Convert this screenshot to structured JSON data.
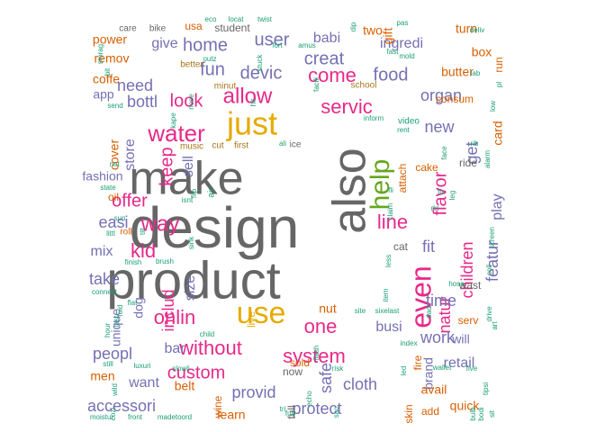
{
  "chart_data": {
    "type": "wordcloud",
    "palette": {
      "gray": "#666666",
      "magenta": "#e7298a",
      "gold": "#e6ab02",
      "purple": "#7570b3",
      "orange": "#d95f02",
      "teal": "#1b9e77",
      "green": "#66a61e",
      "brown": "#a6761d"
    },
    "words": [
      {
        "text": "design",
        "color": "gray"
      },
      {
        "text": "product",
        "color": "gray"
      },
      {
        "text": "make",
        "color": "gray"
      },
      {
        "text": "also",
        "color": "gray"
      },
      {
        "text": "just",
        "color": "gold"
      },
      {
        "text": "use",
        "color": "gold"
      },
      {
        "text": "help",
        "color": "green"
      },
      {
        "text": "even",
        "color": "magenta"
      },
      {
        "text": "water",
        "color": "magenta"
      },
      {
        "text": "way",
        "color": "magenta"
      },
      {
        "text": "allow",
        "color": "magenta"
      },
      {
        "text": "come",
        "color": "magenta"
      },
      {
        "text": "servic",
        "color": "magenta"
      },
      {
        "text": "line",
        "color": "magenta"
      },
      {
        "text": "without",
        "color": "magenta"
      },
      {
        "text": "system",
        "color": "magenta"
      },
      {
        "text": "custom",
        "color": "magenta"
      },
      {
        "text": "onlin",
        "color": "magenta"
      },
      {
        "text": "kid",
        "color": "magenta"
      },
      {
        "text": "offer",
        "color": "magenta"
      },
      {
        "text": "keep",
        "color": "magenta"
      },
      {
        "text": "look",
        "color": "magenta"
      },
      {
        "text": "flavor",
        "color": "magenta"
      },
      {
        "text": "children",
        "color": "magenta"
      },
      {
        "text": "natur",
        "color": "magenta"
      },
      {
        "text": "one",
        "color": "magenta"
      },
      {
        "text": "includ",
        "color": "magenta"
      },
      {
        "text": "safe",
        "color": "purple"
      },
      {
        "text": "fun",
        "color": "purple"
      },
      {
        "text": "devic",
        "color": "purple"
      },
      {
        "text": "creat",
        "color": "purple"
      },
      {
        "text": "food",
        "color": "purple"
      },
      {
        "text": "home",
        "color": "purple"
      },
      {
        "text": "user",
        "color": "purple"
      },
      {
        "text": "need",
        "color": "purple"
      },
      {
        "text": "easi",
        "color": "purple"
      },
      {
        "text": "store",
        "color": "purple"
      },
      {
        "text": "sell",
        "color": "purple"
      },
      {
        "text": "get",
        "color": "purple"
      },
      {
        "text": "new",
        "color": "purple"
      },
      {
        "text": "fit",
        "color": "purple"
      },
      {
        "text": "featur",
        "color": "purple"
      },
      {
        "text": "time",
        "color": "purple"
      },
      {
        "text": "work",
        "color": "purple"
      },
      {
        "text": "protect",
        "color": "purple"
      },
      {
        "text": "cloth",
        "color": "purple"
      },
      {
        "text": "provid",
        "color": "purple"
      },
      {
        "text": "accessori",
        "color": "purple"
      },
      {
        "text": "peopl",
        "color": "purple"
      },
      {
        "text": "want",
        "color": "purple"
      },
      {
        "text": "busi",
        "color": "purple"
      },
      {
        "text": "take",
        "color": "purple"
      },
      {
        "text": "mix",
        "color": "purple"
      },
      {
        "text": "bar",
        "color": "purple"
      },
      {
        "text": "size",
        "color": "purple"
      },
      {
        "text": "bottl",
        "color": "purple"
      },
      {
        "text": "babi",
        "color": "purple"
      },
      {
        "text": "give",
        "color": "purple"
      },
      {
        "text": "organ",
        "color": "purple"
      },
      {
        "text": "ingredi",
        "color": "purple"
      },
      {
        "text": "play",
        "color": "purple"
      },
      {
        "text": "retail",
        "color": "purple"
      },
      {
        "text": "brand",
        "color": "purple"
      },
      {
        "text": "will",
        "color": "purple"
      },
      {
        "text": "app",
        "color": "purple"
      },
      {
        "text": "unique",
        "color": "purple"
      },
      {
        "text": "dog",
        "color": "purple"
      },
      {
        "text": "fashion",
        "color": "purple"
      },
      {
        "text": "cover",
        "color": "orange"
      },
      {
        "text": "butter",
        "color": "orange"
      },
      {
        "text": "box",
        "color": "orange"
      },
      {
        "text": "two",
        "color": "orange"
      },
      {
        "text": "gift",
        "color": "orange"
      },
      {
        "text": "turn",
        "color": "orange"
      },
      {
        "text": "power",
        "color": "orange"
      },
      {
        "text": "remov",
        "color": "orange"
      },
      {
        "text": "coffe",
        "color": "orange"
      },
      {
        "text": "card",
        "color": "orange"
      },
      {
        "text": "cake",
        "color": "orange"
      },
      {
        "text": "skin",
        "color": "orange"
      },
      {
        "text": "quick",
        "color": "orange"
      },
      {
        "text": "avail",
        "color": "orange"
      },
      {
        "text": "belt",
        "color": "orange"
      },
      {
        "text": "learn",
        "color": "orange"
      },
      {
        "text": "men",
        "color": "orange"
      },
      {
        "text": "nut",
        "color": "orange"
      },
      {
        "text": "serv",
        "color": "orange"
      },
      {
        "text": "sold",
        "color": "orange"
      },
      {
        "text": "usa",
        "color": "orange"
      },
      {
        "text": "attach",
        "color": "orange"
      },
      {
        "text": "fire",
        "color": "orange"
      },
      {
        "text": "add",
        "color": "orange"
      },
      {
        "text": "wine",
        "color": "orange"
      },
      {
        "text": "live",
        "color": "gold"
      },
      {
        "text": "ride",
        "color": "gray"
      },
      {
        "text": "cat",
        "color": "gray"
      },
      {
        "text": "wast",
        "color": "gray"
      },
      {
        "text": "now",
        "color": "gray"
      },
      {
        "text": "full",
        "color": "gray"
      },
      {
        "text": "oil",
        "color": "orange"
      },
      {
        "text": "student",
        "color": "gray"
      },
      {
        "text": "care",
        "color": "gray"
      },
      {
        "text": "bike",
        "color": "gray"
      },
      {
        "text": "consum",
        "color": "orange"
      },
      {
        "text": "music",
        "color": "brown"
      },
      {
        "text": "cut",
        "color": "brown"
      },
      {
        "text": "first",
        "color": "brown"
      },
      {
        "text": "ice",
        "color": "gray"
      },
      {
        "text": "school",
        "color": "brown"
      },
      {
        "text": "better",
        "color": "brown"
      },
      {
        "text": "minut",
        "color": "brown"
      },
      {
        "text": "video",
        "color": "teal"
      },
      {
        "text": "inform",
        "color": "teal"
      },
      {
        "text": "rent",
        "color": "teal"
      },
      {
        "text": "face",
        "color": "teal"
      },
      {
        "text": "fast",
        "color": "teal"
      },
      {
        "text": "deliv",
        "color": "teal"
      },
      {
        "text": "moistur",
        "color": "teal"
      },
      {
        "text": "front",
        "color": "teal"
      },
      {
        "text": "madetoord",
        "color": "teal"
      },
      {
        "text": "cozi",
        "color": "teal"
      },
      {
        "text": "wild",
        "color": "teal"
      },
      {
        "text": "hour",
        "color": "teal"
      },
      {
        "text": "last",
        "color": "teal"
      },
      {
        "text": "fold",
        "color": "teal"
      },
      {
        "text": "connect",
        "color": "teal"
      },
      {
        "text": "flat",
        "color": "teal"
      },
      {
        "text": "finish",
        "color": "teal"
      },
      {
        "text": "brush",
        "color": "teal"
      },
      {
        "text": "littl",
        "color": "teal"
      },
      {
        "text": "roll",
        "color": "orange"
      },
      {
        "text": "sun",
        "color": "teal"
      },
      {
        "text": "state",
        "color": "teal"
      },
      {
        "text": "net",
        "color": "teal"
      },
      {
        "text": "send",
        "color": "teal"
      },
      {
        "text": "child",
        "color": "teal"
      },
      {
        "text": "still",
        "color": "teal"
      },
      {
        "text": "luxuri",
        "color": "teal"
      },
      {
        "text": "slowli",
        "color": "teal"
      },
      {
        "text": "echo",
        "color": "teal"
      },
      {
        "text": "tri",
        "color": "teal"
      },
      {
        "text": "flash",
        "color": "teal"
      },
      {
        "text": "risk",
        "color": "teal"
      },
      {
        "text": "site",
        "color": "teal"
      },
      {
        "text": "sixelast",
        "color": "teal"
      },
      {
        "text": "led",
        "color": "teal"
      },
      {
        "text": "index",
        "color": "teal"
      },
      {
        "text": "wallet",
        "color": "teal"
      },
      {
        "text": "five",
        "color": "teal"
      },
      {
        "text": "tipsi",
        "color": "teal"
      },
      {
        "text": "bulb",
        "color": "teal"
      },
      {
        "text": "bodi",
        "color": "teal"
      },
      {
        "text": "sit",
        "color": "teal"
      },
      {
        "text": "drive",
        "color": "teal"
      },
      {
        "text": "art",
        "color": "teal"
      },
      {
        "text": "hose",
        "color": "teal"
      },
      {
        "text": "coll",
        "color": "teal"
      },
      {
        "text": "screen",
        "color": "teal"
      },
      {
        "text": "leg",
        "color": "teal"
      },
      {
        "text": "alarm",
        "color": "teal"
      },
      {
        "text": "rib",
        "color": "teal"
      },
      {
        "text": "low",
        "color": "teal"
      },
      {
        "text": "pl",
        "color": "teal"
      },
      {
        "text": "run",
        "color": "orange"
      },
      {
        "text": "mold",
        "color": "teal"
      },
      {
        "text": "lab",
        "color": "teal"
      },
      {
        "text": "fix",
        "color": "teal"
      },
      {
        "text": "fli",
        "color": "teal"
      },
      {
        "text": "claim",
        "color": "teal"
      },
      {
        "text": "less",
        "color": "teal"
      },
      {
        "text": "item",
        "color": "teal"
      },
      {
        "text": "dad",
        "color": "teal"
      },
      {
        "text": "dri",
        "color": "teal"
      },
      {
        "text": "pas",
        "color": "teal"
      },
      {
        "text": "eco",
        "color": "teal"
      },
      {
        "text": "locat",
        "color": "teal"
      },
      {
        "text": "twist",
        "color": "teal"
      },
      {
        "text": "dip",
        "color": "teal"
      },
      {
        "text": "fort",
        "color": "teal"
      },
      {
        "text": "amus",
        "color": "teal"
      },
      {
        "text": "outz",
        "color": "teal"
      },
      {
        "text": "stuck",
        "color": "teal"
      },
      {
        "text": "kape",
        "color": "teal"
      },
      {
        "text": "nose",
        "color": "teal"
      },
      {
        "text": "facili",
        "color": "teal"
      },
      {
        "text": "hit",
        "color": "teal"
      },
      {
        "text": "air",
        "color": "teal"
      },
      {
        "text": "flip",
        "color": "teal"
      },
      {
        "text": "isnt",
        "color": "teal"
      },
      {
        "text": "sink",
        "color": "teal"
      },
      {
        "text": "tilt",
        "color": "teal"
      },
      {
        "text": "bit",
        "color": "teal"
      },
      {
        "text": "storag",
        "color": "teal"
      },
      {
        "text": "ali",
        "color": "teal"
      },
      {
        "text": "full",
        "color": "teal"
      },
      {
        "text": "sac",
        "color": "teal"
      }
    ]
  }
}
